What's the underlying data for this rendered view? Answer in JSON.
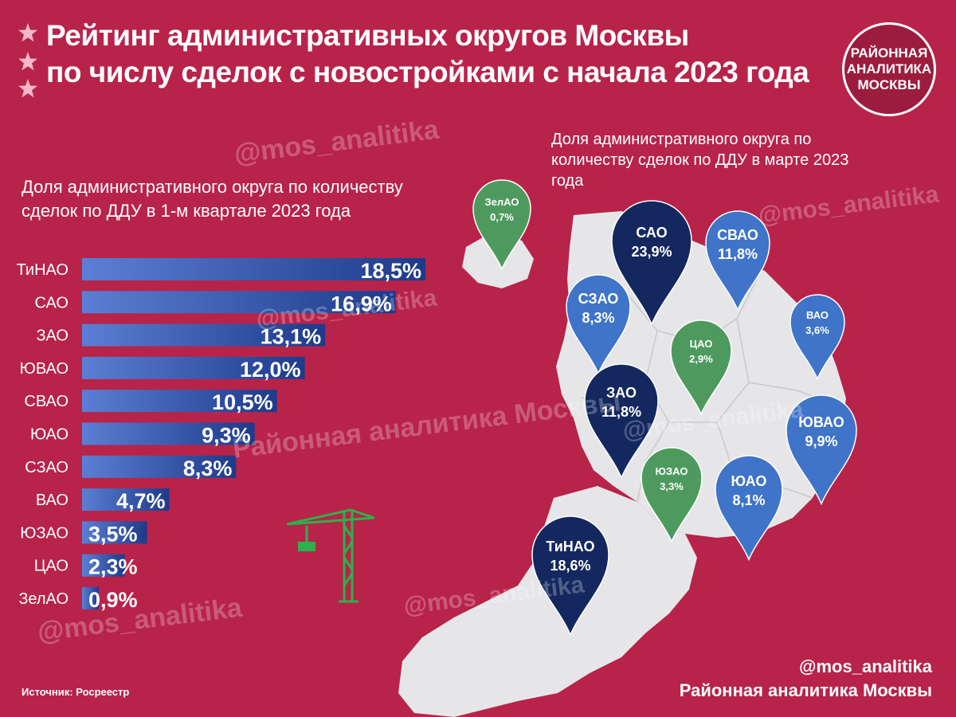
{
  "header": {
    "title_line1": "Рейтинг административных округов Москвы",
    "title_line2": "по числу сделок с новостройками с начала 2023 года",
    "logo_lines": [
      "РАЙОННАЯ",
      "АНАЛИТИКА",
      "МОСКВЫ"
    ]
  },
  "watermarks": [
    "@mos_analitika",
    "Районная аналитика Москвы"
  ],
  "footer": {
    "source": "Источник: Росреестр",
    "handle": "@mos_analitika",
    "brand": "Районная аналитика Москвы"
  },
  "colors": {
    "background": "#b8234a",
    "bar_start": "#5b7fd4",
    "bar_end": "#1e3a8a",
    "pin_dark": "#14285f",
    "pin_blue": "#3f74c9",
    "pin_green": "#4e9a5e",
    "map": "#e6e6e8",
    "crane": "#2bb24c"
  },
  "icons": [
    "star-icon",
    "crane-icon",
    "map-pin-icon"
  ],
  "chart_data": [
    {
      "type": "bar",
      "title": "Доля административного округа по количеству сделок по ДДУ в 1-м квартале 2023 года",
      "categories": [
        "ТиНАО",
        "САО",
        "ЗАО",
        "ЮВАО",
        "СВАО",
        "ЮАО",
        "СЗАО",
        "ВАО",
        "ЮЗАО",
        "ЦАО",
        "ЗелАО"
      ],
      "values": [
        18.5,
        16.9,
        13.1,
        12.0,
        10.5,
        9.3,
        8.3,
        4.7,
        3.5,
        2.3,
        0.9
      ],
      "labels": [
        "18,5%",
        "16,9%",
        "13,1%",
        "12,0%",
        "10,5%",
        "9,3%",
        "8,3%",
        "4,7%",
        "3,5%",
        "2,3%",
        "0,9%"
      ],
      "unit": "%",
      "orientation": "horizontal",
      "grid": false
    },
    {
      "type": "map",
      "title": "Доля административного округа по количеству сделок по ДДУ в марте 2023 года",
      "pins": [
        {
          "name": "ЗелАО",
          "value": 0.7,
          "label": "0,7%",
          "color": "green"
        },
        {
          "name": "САО",
          "value": 23.9,
          "label": "23,9%",
          "color": "dark"
        },
        {
          "name": "СВАО",
          "value": 11.8,
          "label": "11,8%",
          "color": "blue"
        },
        {
          "name": "СЗАО",
          "value": 8.3,
          "label": "8,3%",
          "color": "blue"
        },
        {
          "name": "ВАО",
          "value": 3.6,
          "label": "3,6%",
          "color": "blue"
        },
        {
          "name": "ЦАО",
          "value": 2.9,
          "label": "2,9%",
          "color": "green"
        },
        {
          "name": "ЗАО",
          "value": 11.8,
          "label": "11,8%",
          "color": "dark"
        },
        {
          "name": "ЮВАО",
          "value": 9.9,
          "label": "9,9%",
          "color": "blue"
        },
        {
          "name": "ЮЗАО",
          "value": 3.3,
          "label": "3,3%",
          "color": "green"
        },
        {
          "name": "ЮАО",
          "value": 8.1,
          "label": "8,1%",
          "color": "blue"
        },
        {
          "name": "ТиНАО",
          "value": 18.6,
          "label": "18,6%",
          "color": "dark"
        }
      ]
    }
  ]
}
